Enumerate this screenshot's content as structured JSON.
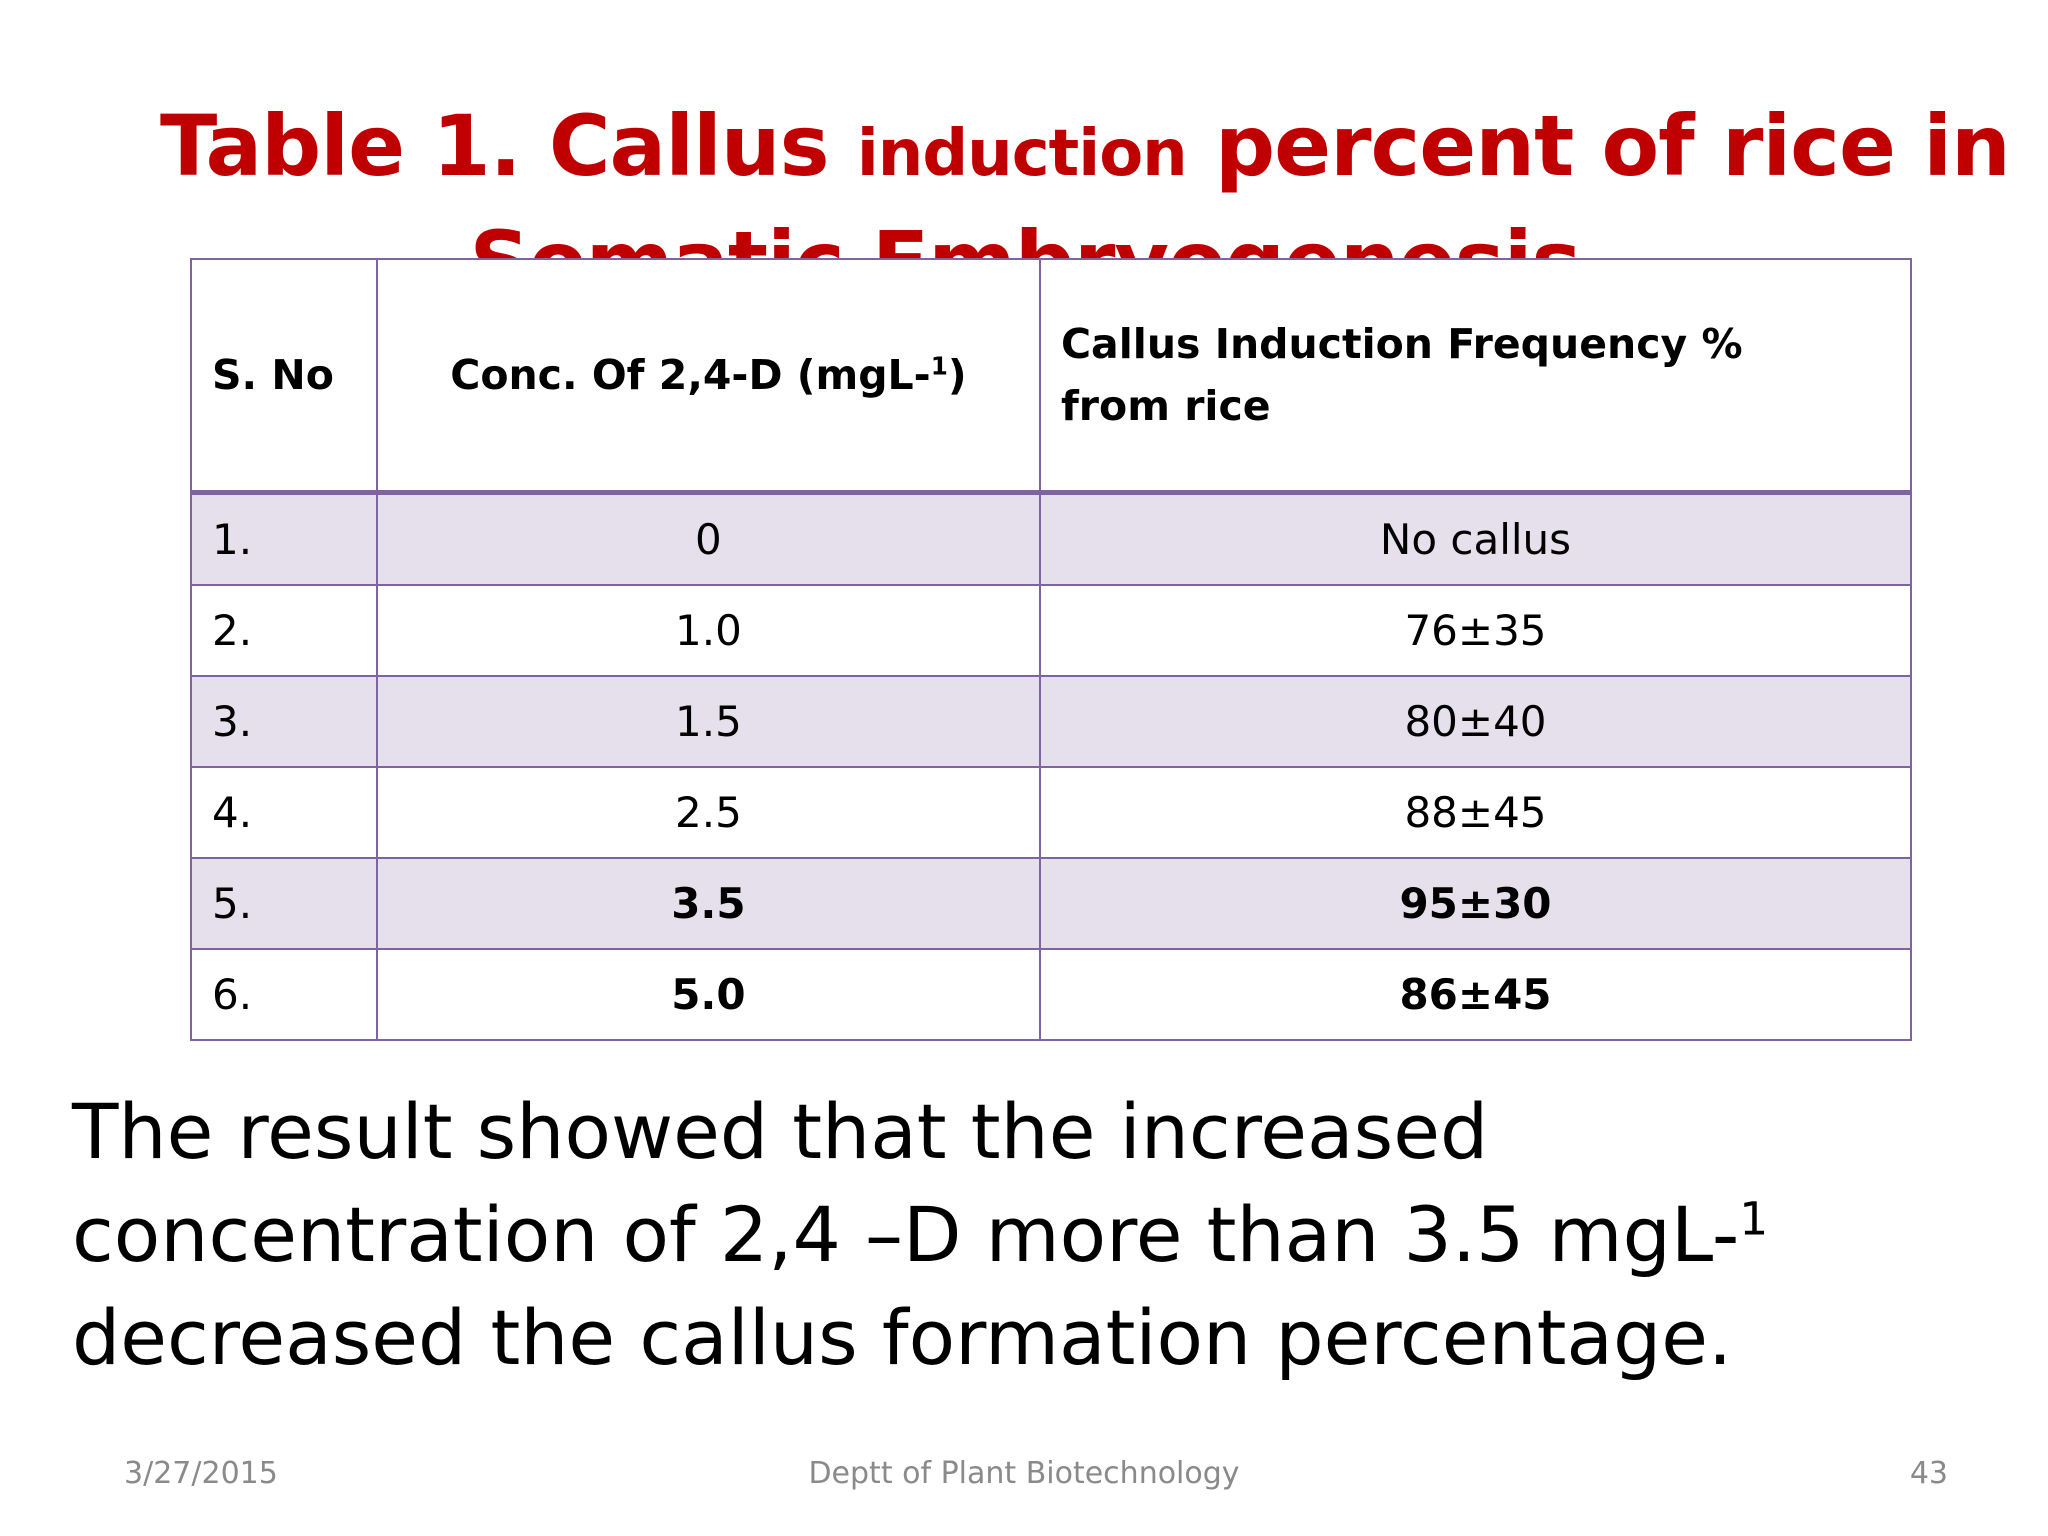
{
  "title": {
    "part1": "Table 1. Callus ",
    "part2_small": "induction",
    "part3": " percent of rice in",
    "line2": "Somatic Embryogenesis"
  },
  "table": {
    "headers": {
      "sno": "S. No",
      "conc_main": "Conc. Of 2,4-D (mgL-",
      "conc_sup": "1",
      "conc_close": ")",
      "freq": "Callus Induction Frequency % from rice"
    },
    "rows": [
      {
        "sno": "1.",
        "conc": "0",
        "freq": "No callus"
      },
      {
        "sno": "2.",
        "conc": "1.0",
        "freq": "76±35"
      },
      {
        "sno": "3.",
        "conc": "1.5",
        "freq": "80±40"
      },
      {
        "sno": "4.",
        "conc": "2.5",
        "freq": "88±45"
      },
      {
        "sno": "5.",
        "conc": "3.5",
        "freq": "95±30"
      },
      {
        "sno": "6.",
        "conc": "5.0",
        "freq": "86±45"
      }
    ]
  },
  "conclusion": {
    "part1": "The result showed that the  increased concentration of 2,4 –D more than 3.5 mgL-",
    "sup": "1",
    "part2": " decreased the callus formation percentage."
  },
  "footer": {
    "date": "3/27/2015",
    "department": "Deptt of Plant Biotechnology",
    "page": "43"
  },
  "colors": {
    "title": "#c00000",
    "border": "#8064a2",
    "row_shade": "#e5e0ec"
  }
}
